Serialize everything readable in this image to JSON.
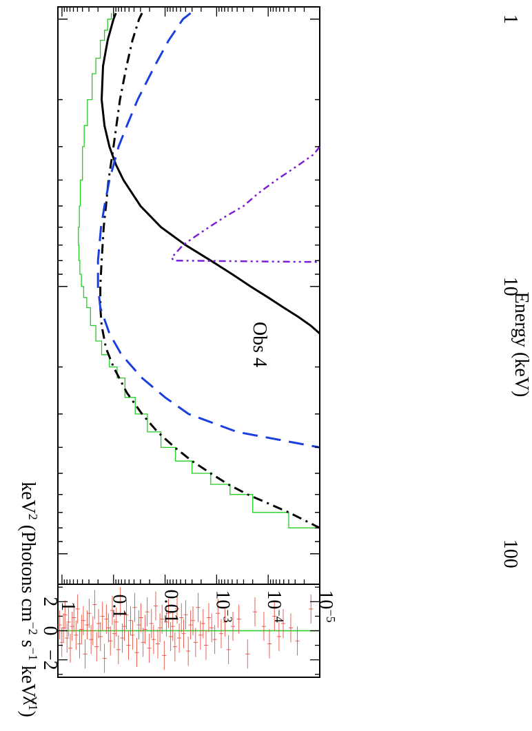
{
  "chart_data": [
    {
      "type": "line",
      "title": "Obs 4",
      "ylabel": "keV2 (Photons cm-2 s-1 keV-1)",
      "ylabel_parts": [
        "keV",
        "2",
        " (Photons cm",
        "−2",
        " s",
        "−1",
        " keV",
        "−1",
        ")"
      ],
      "xlabel": "Energy (keV)",
      "x_scale": "log",
      "y_scale": "log",
      "xlim": [
        0.9,
        130
      ],
      "ylim": [
        1e-05,
        1.2
      ],
      "x_tick_labels": [
        {
          "value": 1,
          "label": "1"
        },
        {
          "value": 10,
          "label": "10"
        },
        {
          "value": 100,
          "label": "100"
        }
      ],
      "y_tick_labels": [
        {
          "value": 1,
          "label": "1",
          "exp": ""
        },
        {
          "value": 0.1,
          "label": "0.1",
          "exp": ""
        },
        {
          "value": 0.01,
          "label": "0.01",
          "exp": ""
        },
        {
          "value": 0.001,
          "label": "10",
          "exp": "−3"
        },
        {
          "value": 0.0001,
          "label": "10",
          "exp": "−4"
        },
        {
          "value": 1e-05,
          "label": "10",
          "exp": "−5"
        }
      ],
      "colors": {
        "data": "#e74c3c",
        "model": "#22cc22",
        "comp_solid": "#000000",
        "comp_dashdot": "#000000",
        "comp_dashed": "#1a3fe0",
        "comp_line": "#7a1fd6"
      },
      "series": [
        {
          "style": "model-histogram",
          "color": "#22cc22",
          "x": [
            0.95,
            1.0,
            1.1,
            1.2,
            1.4,
            1.6,
            2.0,
            2.5,
            3.0,
            4.0,
            5.0,
            6.0,
            7.0,
            8.0,
            9.0,
            10.0,
            11.0,
            12.0,
            14.0,
            16.0,
            18.0,
            20.0,
            22.0,
            26.0,
            30.0,
            35.0,
            40.0,
            45.0,
            50.0,
            55.0,
            60.0,
            70.0,
            80.0
          ],
          "y": [
            0.11,
            0.13,
            0.15,
            0.18,
            0.22,
            0.26,
            0.32,
            0.37,
            0.4,
            0.44,
            0.46,
            0.48,
            0.47,
            0.45,
            0.42,
            0.38,
            0.33,
            0.28,
            0.22,
            0.17,
            0.12,
            0.085,
            0.06,
            0.038,
            0.022,
            0.012,
            0.0063,
            0.003,
            0.0013,
            0.00055,
            0.0002,
            4e-05,
            1e-05
          ]
        },
        {
          "style": "solid-black",
          "color": "#000000",
          "x": [
            0.95,
            1.0,
            1.2,
            1.5,
            2.0,
            2.5,
            3.0,
            3.5,
            4.0,
            5.0,
            6.0,
            7.0,
            8.0,
            9.0,
            10.0,
            11.0,
            12.0,
            13.0,
            14.0,
            15.0
          ],
          "y": [
            0.09,
            0.1,
            0.13,
            0.16,
            0.17,
            0.15,
            0.12,
            0.09,
            0.064,
            0.03,
            0.012,
            0.004,
            0.0013,
            0.0005,
            0.00022,
            0.0001,
            5e-05,
            2.6e-05,
            1.5e-05,
            1e-05
          ]
        },
        {
          "style": "dashdot-black",
          "color": "#000000",
          "x": [
            0.95,
            1.0,
            1.2,
            1.5,
            2.0,
            3.0,
            4.0,
            5.0,
            6.0,
            8.0,
            10.0,
            12.0,
            14.0,
            17.0,
            20.0,
            25.0,
            30.0,
            35.0,
            40.0,
            45.0,
            50.0,
            55.0,
            60.0,
            70.0,
            80.0
          ],
          "y": [
            0.028,
            0.032,
            0.043,
            0.056,
            0.075,
            0.1,
            0.125,
            0.14,
            0.155,
            0.17,
            0.18,
            0.18,
            0.17,
            0.14,
            0.1,
            0.055,
            0.028,
            0.014,
            0.0065,
            0.003,
            0.0013,
            0.0006,
            0.00025,
            4e-05,
            1e-05
          ]
        },
        {
          "style": "dashed-blue",
          "color": "#1a3fe0",
          "x": [
            0.95,
            1.0,
            1.2,
            1.5,
            2.0,
            2.5,
            3.0,
            4.0,
            5.0,
            6.0,
            8.0,
            10.0,
            12.0,
            15.0,
            18.0,
            22.0,
            26.0,
            30.0,
            35.0,
            40.0
          ],
          "y": [
            0.0032,
            0.0045,
            0.0085,
            0.016,
            0.034,
            0.055,
            0.08,
            0.12,
            0.15,
            0.175,
            0.2,
            0.2,
            0.18,
            0.12,
            0.07,
            0.028,
            0.01,
            0.0035,
            0.0004,
            1e-05
          ]
        },
        {
          "style": "line-purple",
          "color": "#7a1fd6",
          "x": [
            3.0,
            3.2,
            3.5,
            4.0,
            4.5,
            5.0,
            5.5,
            6.0,
            6.5,
            7.0,
            7.5,
            7.8,
            8.0,
            8.1
          ],
          "y": [
            1e-05,
            1.3e-05,
            2.5e-05,
            7e-05,
            0.00016,
            0.0003,
            0.0007,
            0.0014,
            0.0026,
            0.0045,
            0.0062,
            0.0075,
            0.0068,
            1e-05
          ]
        }
      ]
    },
    {
      "type": "scatter",
      "xlabel": "Energy (keV)",
      "ylabel": "χ",
      "x_scale": "log",
      "xlim": [
        0.9,
        130
      ],
      "ylim": [
        -3.2,
        3.2
      ],
      "y_tick_labels": [
        {
          "value": 2,
          "label": "2"
        },
        {
          "value": 0,
          "label": "0"
        },
        {
          "value": -2,
          "label": "−2"
        }
      ],
      "reference_line": {
        "y": 0,
        "color": "#22cc22"
      },
      "series": [
        {
          "name": "",
          "color": "#e74c3c",
          "x": [
            0.93,
            0.97,
            1.0,
            1.03,
            1.07,
            1.1,
            1.14,
            1.18,
            1.22,
            1.27,
            1.31,
            1.36,
            1.41,
            1.46,
            1.51,
            1.57,
            1.63,
            1.69,
            1.75,
            1.81,
            1.88,
            1.95,
            2.02,
            2.1,
            2.18,
            2.26,
            2.35,
            2.44,
            2.53,
            2.63,
            2.73,
            2.84,
            2.95,
            3.06,
            3.18,
            3.31,
            3.44,
            3.58,
            3.72,
            3.87,
            4.03,
            4.19,
            4.36,
            4.54,
            4.72,
            4.91,
            5.11,
            5.32,
            5.54,
            5.77,
            6.0,
            6.25,
            6.51,
            6.78,
            7.06,
            7.35,
            7.66,
            7.98,
            8.31,
            8.66,
            9.02,
            9.4,
            9.8,
            10.2,
            10.7,
            11.2,
            11.7,
            12.3,
            12.9,
            13.5,
            14.2,
            15.0,
            15.8,
            16.7,
            17.7,
            18.8,
            20.0,
            21.5,
            23.0,
            25.0,
            28.0,
            33.0,
            38.0,
            45.0,
            50.0,
            55.0,
            60.0,
            65.0,
            75.0,
            85.0,
            110.0
          ],
          "y": [
            0.4,
            -0.8,
            0.2,
            1.1,
            -0.5,
            0.6,
            -1.2,
            0.3,
            0.9,
            -0.3,
            1.5,
            -0.9,
            0.1,
            0.7,
            -1.6,
            0.4,
            1.2,
            -0.6,
            0.0,
            1.8,
            -1.1,
            0.5,
            -0.4,
            1.0,
            -1.9,
            0.8,
            0.2,
            -0.7,
            1.4,
            -0.2,
            0.6,
            -1.3,
            2.0,
            -0.5,
            0.3,
            1.1,
            -1.0,
            0.7,
            -0.3,
            1.6,
            -1.5,
            0.4,
            0.9,
            -0.8,
            0.1,
            1.3,
            -1.2,
            0.5,
            -0.6,
            1.7,
            -0.9,
            0.2,
            0.8,
            -1.7,
            0.6,
            1.2,
            -0.4,
            0.3,
            -1.1,
            1.5,
            -0.5,
            0.9,
            -0.2,
            1.1,
            -1.4,
            0.4,
            0.7,
            -0.8,
            1.6,
            -0.3,
            0.5,
            -1.0,
            0.9,
            0.2,
            -0.6,
            1.2,
            -0.2,
            0.6,
            -1.3,
            0.3,
            0.8,
            -1.6,
            1.3,
            0.3,
            -0.9,
            1.0,
            -0.4,
            0.5,
            0.2,
            -0.7,
            1.5
          ],
          "xerr_frac": 0.04,
          "yerr": 1.0
        }
      ]
    }
  ]
}
